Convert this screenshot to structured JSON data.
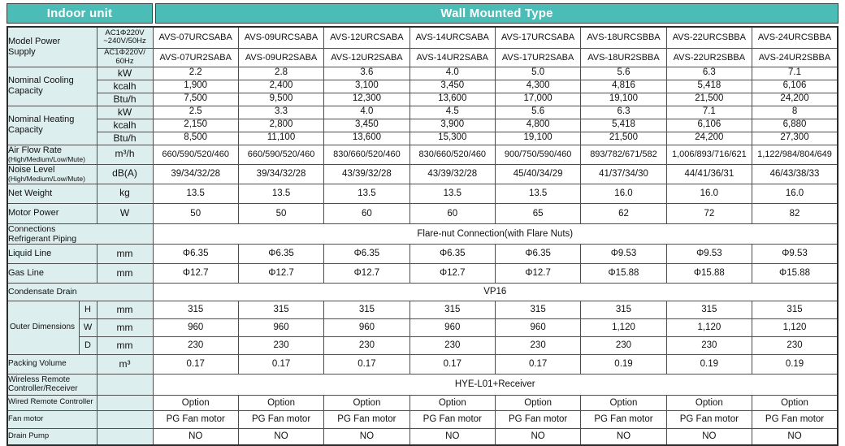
{
  "header": {
    "left": "Indoor unit",
    "right": "Wall Mounted Type"
  },
  "colors": {
    "header_bg": "#4cbcb6",
    "header_text": "#ffffff",
    "label_bg": "#dceeed",
    "grid_border": "#4f4f4f",
    "outer_border": "#2b2b2b"
  },
  "table": {
    "rows": [
      {
        "id": "model-1",
        "label": "Model Power\nSupply",
        "label_rowspan": 2,
        "unit": "AC1Φ220V\n~240V/50Hz",
        "values": [
          "AVS-07URCSABA",
          "AVS-09URCSABA",
          "AVS-12URCSABA",
          "AVS-14URCSABA",
          "AVS-17URCSABA",
          "AVS-18URCSBBA",
          "AVS-22URCSBBA",
          "AVS-24URCSBBA"
        ]
      },
      {
        "id": "model-2",
        "unit": "AC1Φ220V/\n60Hz",
        "values": [
          "AVS-07UR2SABA",
          "AVS-09UR2SABA",
          "AVS-12UR2SABA",
          "AVS-14UR2SABA",
          "AVS-17UR2SABA",
          "AVS-18UR2SBBA",
          "AVS-22UR2SBBA",
          "AVS-24UR2SBBA"
        ]
      },
      {
        "id": "cooling-kw",
        "label": "Nominal Cooling\nCapacity",
        "label_rowspan": 3,
        "unit": "kW",
        "values": [
          "2.2",
          "2.8",
          "3.6",
          "4.0",
          "5.0",
          "5.6",
          "6.3",
          "7.1"
        ]
      },
      {
        "id": "cooling-kcalh",
        "unit": "kcalh",
        "values": [
          "1,900",
          "2,400",
          "3,100",
          "3,450",
          "4,300",
          "4,816",
          "5,418",
          "6,106"
        ]
      },
      {
        "id": "cooling-btuh",
        "unit": "Btu/h",
        "values": [
          "7,500",
          "9,500",
          "12,300",
          "13,600",
          "17,000",
          "19,100",
          "21,500",
          "24,200"
        ]
      },
      {
        "id": "heating-kw",
        "label": "Nominal Heating\nCapacity",
        "label_rowspan": 3,
        "unit": "kW",
        "values": [
          "2.5",
          "3.3",
          "4.0",
          "4.5",
          "5.6",
          "6.3",
          "7.1",
          "8"
        ]
      },
      {
        "id": "heating-kcalh",
        "unit": "kcalh",
        "values": [
          "2,150",
          "2,800",
          "3,450",
          "3,900",
          "4,800",
          "5,418",
          "6,106",
          "6,880"
        ]
      },
      {
        "id": "heating-btuh",
        "unit": "Btu/h",
        "values": [
          "8,500",
          "11,100",
          "13,600",
          "15,300",
          "19,100",
          "21,500",
          "24,200",
          "27,300"
        ]
      },
      {
        "id": "airflow",
        "label": "Air Flow Rate",
        "label_small": "(High/Medium/Low/Mute)",
        "unit": "m³/h",
        "values": [
          "660/590/520/460",
          "660/590/520/460",
          "830/660/520/460",
          "830/660/520/460",
          "900/750/590/460",
          "893/782/671/582",
          "1,006/893/716/621",
          "1,122/984/804/649"
        ]
      },
      {
        "id": "noise",
        "label": "Noise Level",
        "label_small": "(High/Medium/Low/Mute)",
        "unit": "dB(A)",
        "values": [
          "39/34/32/28",
          "39/34/32/28",
          "43/39/32/28",
          "43/39/32/28",
          "45/40/34/29",
          "41/37/34/30",
          "44/41/36/31",
          "46/43/38/33"
        ]
      },
      {
        "id": "net-weight",
        "label": "Net Weight",
        "unit": "kg",
        "values": [
          "13.5",
          "13.5",
          "13.5",
          "13.5",
          "13.5",
          "16.0",
          "16.0",
          "16.0"
        ]
      },
      {
        "id": "motor-power",
        "label": "Motor Power",
        "unit": "W",
        "values": [
          "50",
          "50",
          "60",
          "60",
          "65",
          "62",
          "72",
          "82"
        ]
      },
      {
        "id": "connections",
        "label": "Connections\nRefrigerant Piping",
        "label_colspan": 3,
        "span": "Flare-nut Connection(with Flare Nuts)"
      },
      {
        "id": "liquid-line",
        "label": "Liquid Line",
        "unit": "mm",
        "values": [
          "Φ6.35",
          "Φ6.35",
          "Φ6.35",
          "Φ6.35",
          "Φ6.35",
          "Φ9.53",
          "Φ9.53",
          "Φ9.53"
        ]
      },
      {
        "id": "gas-line",
        "label": "Gas Line",
        "unit": "mm",
        "values": [
          "Φ12.7",
          "Φ12.7",
          "Φ12.7",
          "Φ12.7",
          "Φ12.7",
          "Φ15.88",
          "Φ15.88",
          "Φ15.88"
        ]
      },
      {
        "id": "condensate",
        "label": "Condensate Drain",
        "label_colspan": 3,
        "span": "VP16"
      },
      {
        "id": "dims-h",
        "label": "Outer Dimensions",
        "label_rowspan": 3,
        "label_colspan": 1,
        "sub": "H",
        "unit": "mm",
        "values": [
          "315",
          "315",
          "315",
          "315",
          "315",
          "315",
          "315",
          "315"
        ]
      },
      {
        "id": "dims-w",
        "sub": "W",
        "unit": "mm",
        "values": [
          "960",
          "960",
          "960",
          "960",
          "960",
          "1,120",
          "1,120",
          "1,120"
        ]
      },
      {
        "id": "dims-d",
        "sub": "D",
        "unit": "mm",
        "values": [
          "230",
          "230",
          "230",
          "230",
          "230",
          "230",
          "230",
          "230"
        ]
      },
      {
        "id": "packing",
        "label": "Packing Volume",
        "unit": "m³",
        "values": [
          "0.17",
          "0.17",
          "0.17",
          "0.17",
          "0.17",
          "0.19",
          "0.19",
          "0.19"
        ]
      },
      {
        "id": "wireless",
        "label": "Wireless Remote\nController/Receiver",
        "unit": "",
        "span": "HYE-L01+Receiver"
      },
      {
        "id": "wired",
        "label": "Wired Remote Controller",
        "unit": "",
        "values": [
          "Option",
          "Option",
          "Option",
          "Option",
          "Option",
          "Option",
          "Option",
          "Option"
        ]
      },
      {
        "id": "fan-motor",
        "label": "Fan motor",
        "unit": "",
        "values": [
          "PG Fan motor",
          "PG Fan motor",
          "PG Fan motor",
          "PG Fan motor",
          "PG Fan motor",
          "PG Fan motor",
          "PG Fan motor",
          "PG Fan motor"
        ]
      },
      {
        "id": "drain-pump",
        "label": "Drain Pump",
        "unit": "",
        "values": [
          "NO",
          "NO",
          "NO",
          "NO",
          "NO",
          "NO",
          "NO",
          "NO"
        ]
      }
    ]
  }
}
